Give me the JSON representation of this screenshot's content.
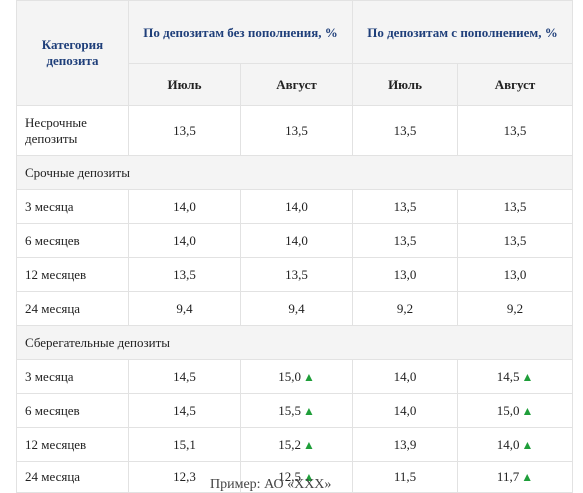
{
  "header": {
    "category": "Категория депозита",
    "group_no_topup": "По депозитам без пополнения, %",
    "group_topup": "По депозитам с пополнением, %",
    "month_july": "Июль",
    "month_august": "Август"
  },
  "up_arrow": "▲",
  "row_nonterm": {
    "label": "Несрочные депозиты",
    "v": [
      "13,5",
      "13,5",
      "13,5",
      "13,5"
    ]
  },
  "section_term": "Срочные депозиты",
  "term": [
    {
      "label": "3 месяца",
      "v": [
        "14,0",
        "14,0",
        "13,5",
        "13,5"
      ]
    },
    {
      "label": "6 месяцев",
      "v": [
        "14,0",
        "14,0",
        "13,5",
        "13,5"
      ]
    },
    {
      "label": "12 месяцев",
      "v": [
        "13,5",
        "13,5",
        "13,0",
        "13,0"
      ]
    },
    {
      "label": "24 месяца",
      "v": [
        "9,4",
        "9,4",
        "9,2",
        "9,2"
      ]
    }
  ],
  "section_savings": "Сберегательные депозиты",
  "savings": [
    {
      "label": "3 месяца",
      "v": [
        "14,5",
        "15,0",
        "14,0",
        "14,5"
      ]
    },
    {
      "label": "6 месяцев",
      "v": [
        "14,5",
        "15,5",
        "14,0",
        "15,0"
      ]
    },
    {
      "label": "12 месяцев",
      "v": [
        "15,1",
        "15,2",
        "13,9",
        "14,0"
      ]
    },
    {
      "label": "24 месяца",
      "v": [
        "12,3",
        "12,5",
        "11,5",
        "11,7"
      ]
    }
  ],
  "caption": "Пример: АО «ХХХ»"
}
